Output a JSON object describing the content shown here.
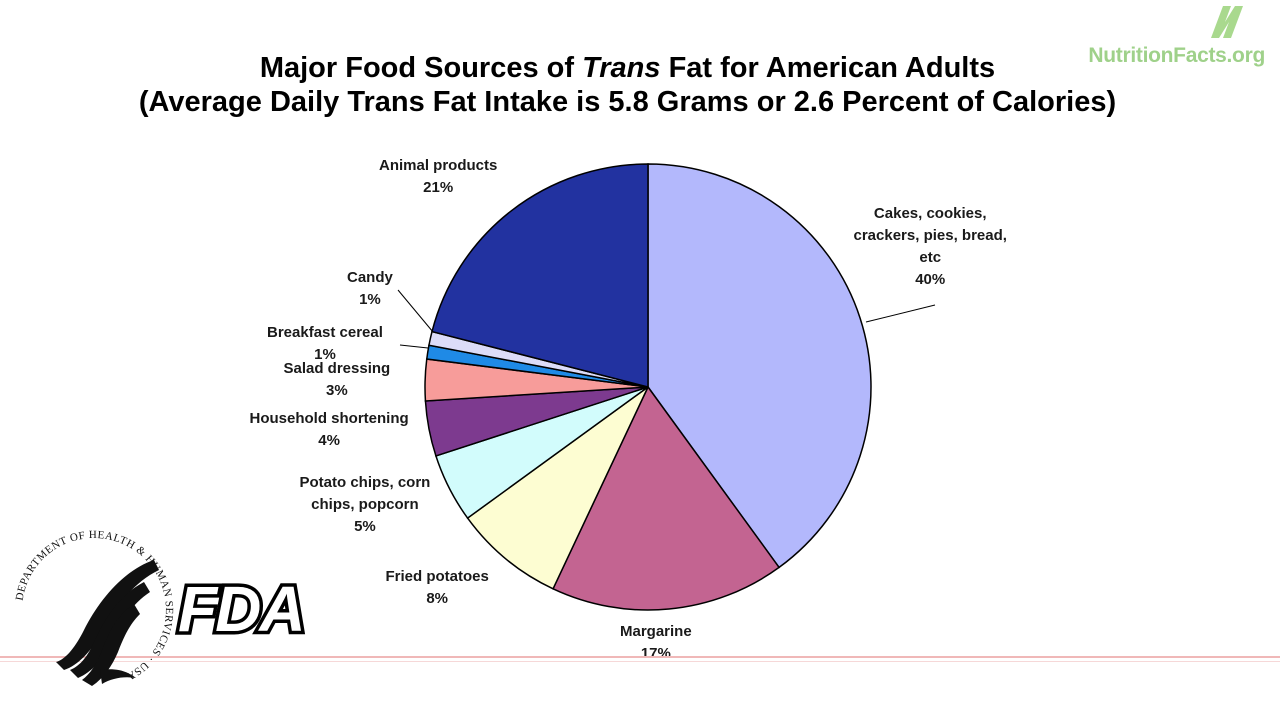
{
  "title": {
    "line1_pre": "Major Food Sources of ",
    "line1_em": "Trans",
    "line1_post": " Fat for American Adults",
    "line2": "(Average Daily Trans Fat Intake is 5.8 Grams or 2.6 Percent of Calories)"
  },
  "brand": {
    "text": "NutritionFacts.org",
    "color": "#9fd18a"
  },
  "fda": {
    "wordmark": "FDA",
    "seal_text": "DEPARTMENT OF HEALTH & HUMAN SERVICES · USA"
  },
  "chart_data": {
    "type": "pie",
    "title": "Major Food Sources of Trans Fat for American Adults",
    "subtitle": "(Average Daily Trans Fat Intake is 5.8 Grams or 2.6 Percent of Calories)",
    "slices": [
      {
        "label_lines": [
          "Cakes, cookies,",
          "crackers, pies, bread,",
          "etc"
        ],
        "value": 40,
        "pct": "40%",
        "color": "#b3b8fc"
      },
      {
        "label_lines": [
          "Margarine"
        ],
        "value": 17,
        "pct": "17%",
        "color": "#c36491"
      },
      {
        "label_lines": [
          "Fried potatoes"
        ],
        "value": 8,
        "pct": "8%",
        "color": "#fdfdd2"
      },
      {
        "label_lines": [
          "Potato chips, corn",
          "chips, popcorn"
        ],
        "value": 5,
        "pct": "5%",
        "color": "#d2fcfc"
      },
      {
        "label_lines": [
          "Household shortening"
        ],
        "value": 4,
        "pct": "4%",
        "color": "#7d3a8f"
      },
      {
        "label_lines": [
          "Salad dressing"
        ],
        "value": 3,
        "pct": "3%",
        "color": "#f79c9a"
      },
      {
        "label_lines": [
          "Breakfast cereal"
        ],
        "value": 1,
        "pct": "1%",
        "color": "#1f8ae6"
      },
      {
        "label_lines": [
          "Candy"
        ],
        "value": 1,
        "pct": "1%",
        "color": "#dcdcf8"
      },
      {
        "label_lines": [
          "Animal products"
        ],
        "value": 21,
        "pct": "21%",
        "color": "#2232a0"
      }
    ]
  }
}
